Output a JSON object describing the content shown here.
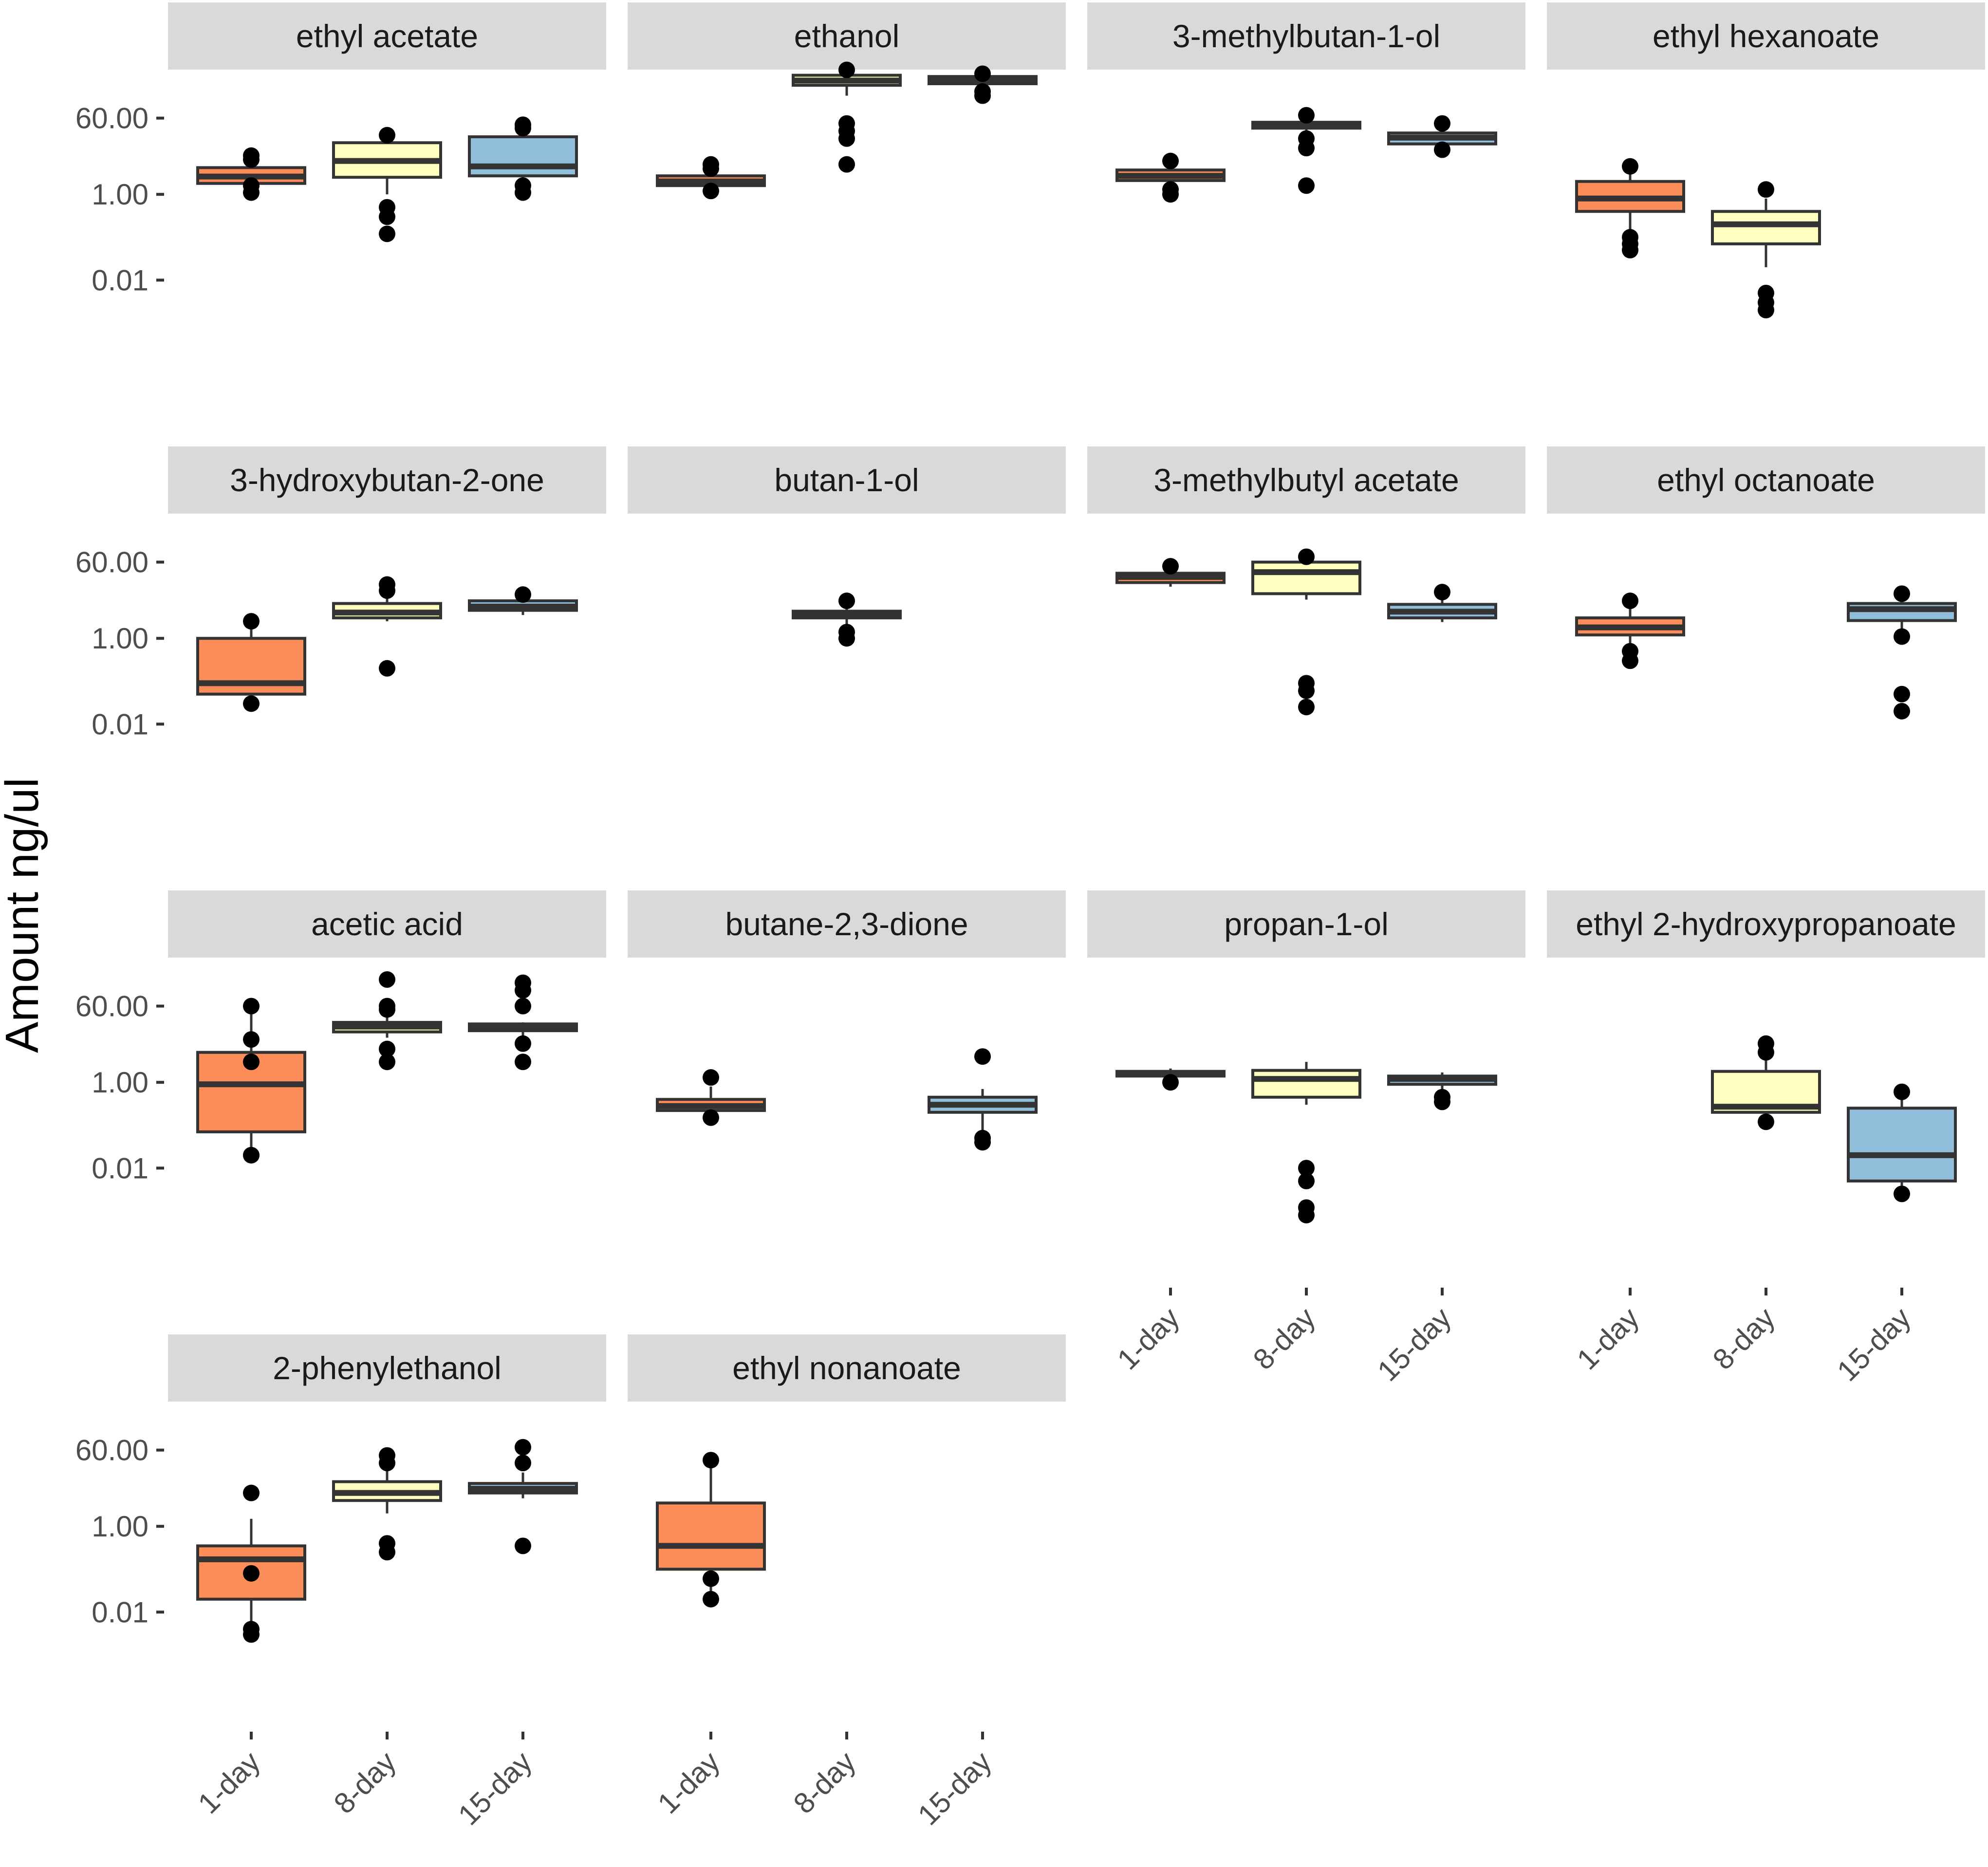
{
  "chart_data": {
    "type": "boxplot",
    "title": "",
    "xlabel": "",
    "ylabel": "Amount ng/ul",
    "y_scale": "log10",
    "y_ticks": [
      {
        "label": "60.00",
        "value": 60
      },
      {
        "label": "1.00",
        "value": 1
      },
      {
        "label": "0.01",
        "value": 0.01
      }
    ],
    "ylim": [
      0.0002,
      1000
    ],
    "categories": [
      "1-day",
      "8-day",
      "15-day"
    ],
    "colors": {
      "1-day": "#fc8d59",
      "8-day": "#ffffbf",
      "15-day": "#91bfdb"
    },
    "panels": [
      {
        "name": "ethyl acetate",
        "boxes": [
          {
            "group": "1-day",
            "q1": 1.8,
            "median": 2.6,
            "q3": 4.2,
            "whisker_low": 1.3,
            "whisker_high": 5.5,
            "outliers": [
              1.1,
              1.6,
              6.5,
              8.0
            ]
          },
          {
            "group": "8-day",
            "q1": 2.5,
            "median": 6.0,
            "q3": 16.0,
            "whisker_low": 1.0,
            "whisker_high": 19.0,
            "outliers": [
              0.5,
              0.3,
              0.12,
              24.0
            ]
          },
          {
            "group": "15-day",
            "q1": 2.7,
            "median": 4.5,
            "q3": 22.0,
            "whisker_low": 1.5,
            "whisker_high": 30.0,
            "outliers": [
              1.1,
              1.6,
              35.0,
              42.0
            ]
          }
        ]
      },
      {
        "name": "ethanol",
        "boxes": [
          {
            "group": "1-day",
            "q1": 1.6,
            "median": 2.0,
            "q3": 2.7,
            "whisker_low": 1.3,
            "whisker_high": 3.2,
            "outliers": [
              1.2,
              4.0,
              5.0
            ]
          },
          {
            "group": "8-day",
            "q1": 350.0,
            "median": 450.0,
            "q3": 600.0,
            "whisker_low": 200.0,
            "whisker_high": 700.0,
            "outliers": [
              45.0,
              30.0,
              20.0,
              5.0,
              800.0
            ]
          },
          {
            "group": "15-day",
            "q1": 380.0,
            "median": 450.0,
            "q3": 560.0,
            "whisker_low": 300.0,
            "whisker_high": 600.0,
            "outliers": [
              250.0,
              200.0,
              650.0
            ]
          }
        ]
      },
      {
        "name": "3-methylbutan-1-ol",
        "boxes": [
          {
            "group": "1-day",
            "q1": 2.1,
            "median": 2.7,
            "q3": 3.7,
            "whisker_low": 1.4,
            "whisker_high": 5.0,
            "outliers": [
              1.0,
              1.3,
              6.0
            ]
          },
          {
            "group": "8-day",
            "q1": 35.0,
            "median": 40.0,
            "q3": 48.0,
            "whisker_low": 30.0,
            "whisker_high": 60.0,
            "outliers": [
              12.0,
              20.0,
              1.6,
              70.0
            ]
          },
          {
            "group": "15-day",
            "q1": 15.0,
            "median": 21.0,
            "q3": 27.0,
            "whisker_low": 12.0,
            "whisker_high": 35.0,
            "outliers": [
              11.0,
              45.0
            ]
          }
        ]
      },
      {
        "name": "ethyl hexanoate",
        "boxes": [
          {
            "group": "1-day",
            "q1": 0.4,
            "median": 0.8,
            "q3": 2.0,
            "whisker_low": 0.15,
            "whisker_high": 3.5,
            "outliers": [
              0.1,
              0.07,
              0.05,
              4.5
            ]
          },
          {
            "group": "8-day",
            "q1": 0.07,
            "median": 0.2,
            "q3": 0.4,
            "whisker_low": 0.02,
            "whisker_high": 0.8,
            "outliers": [
              0.005,
              0.003,
              0.002,
              1.3
            ]
          },
          {
            "group": "15-day",
            "q1": null,
            "median": null,
            "q3": null,
            "whisker_low": null,
            "whisker_high": null,
            "outliers": []
          }
        ]
      },
      {
        "name": "3-hydroxybutan-2-one",
        "boxes": [
          {
            "group": "1-day",
            "q1": 0.05,
            "median": 0.09,
            "q3": 1.0,
            "whisker_low": 0.04,
            "whisker_high": 1.8,
            "outliers": [
              0.03,
              2.5
            ]
          },
          {
            "group": "8-day",
            "q1": 3.0,
            "median": 4.0,
            "q3": 6.5,
            "whisker_low": 2.5,
            "whisker_high": 10.0,
            "outliers": [
              0.2,
              13.0,
              18.0
            ]
          },
          {
            "group": "15-day",
            "q1": 4.5,
            "median": 5.5,
            "q3": 7.5,
            "whisker_low": 3.5,
            "whisker_high": 9.0,
            "outliers": [
              10.5
            ]
          }
        ]
      },
      {
        "name": "butan-1-ol",
        "boxes": [
          {
            "group": "1-day",
            "q1": null,
            "median": null,
            "q3": null,
            "whisker_low": null,
            "whisker_high": null,
            "outliers": []
          },
          {
            "group": "8-day",
            "q1": 3.0,
            "median": 3.6,
            "q3": 4.3,
            "whisker_low": 1.8,
            "whisker_high": 6.0,
            "outliers": [
              1.0,
              1.4,
              7.5
            ]
          },
          {
            "group": "15-day",
            "q1": null,
            "median": null,
            "q3": null,
            "whisker_low": null,
            "whisker_high": null,
            "outliers": []
          }
        ]
      },
      {
        "name": "3-methylbutyl acetate",
        "boxes": [
          {
            "group": "1-day",
            "q1": 20.0,
            "median": 27.0,
            "q3": 33.0,
            "whisker_low": 16.0,
            "whisker_high": 40.0,
            "outliers": [
              48.0
            ]
          },
          {
            "group": "8-day",
            "q1": 11.0,
            "median": 35.0,
            "q3": 60.0,
            "whisker_low": 8.0,
            "whisker_high": 70.0,
            "outliers": [
              0.09,
              0.06,
              0.025,
              80.0
            ]
          },
          {
            "group": "15-day",
            "q1": 3.0,
            "median": 4.2,
            "q3": 6.2,
            "whisker_low": 2.4,
            "whisker_high": 9.0,
            "outliers": [
              12.0
            ]
          }
        ]
      },
      {
        "name": "ethyl octanoate",
        "boxes": [
          {
            "group": "1-day",
            "q1": 1.2,
            "median": 1.8,
            "q3": 3.0,
            "whisker_low": 0.5,
            "whisker_high": 5.5,
            "outliers": [
              0.3,
              0.5,
              7.5
            ]
          },
          {
            "group": "15-day",
            "q1": 2.6,
            "median": 4.8,
            "q3": 6.5,
            "whisker_low": 1.5,
            "whisker_high": 9.0,
            "outliers": [
              1.1,
              0.05,
              0.02,
              11.0
            ]
          },
          {
            "group": "8-day",
            "q1": null,
            "median": null,
            "q3": null,
            "whisker_low": null,
            "whisker_high": null,
            "outliers": []
          }
        ]
      },
      {
        "name": "acetic acid",
        "boxes": [
          {
            "group": "1-day",
            "q1": 0.07,
            "median": 0.9,
            "q3": 5.0,
            "whisker_low": 0.03,
            "whisker_high": 60.0,
            "outliers": [
              0.02,
              0.02,
              3.0,
              10.0,
              60.0
            ]
          },
          {
            "group": "8-day",
            "q1": 15.0,
            "median": 20.0,
            "q3": 25.0,
            "whisker_low": 11.0,
            "whisker_high": 40.0,
            "outliers": [
              6.0,
              3.0,
              50.0,
              60.0,
              250.0
            ]
          },
          {
            "group": "15-day",
            "q1": 16.0,
            "median": 20.0,
            "q3": 23.0,
            "whisker_low": 12.0,
            "whisker_high": 25.0,
            "outliers": [
              8.0,
              3.0,
              60.0,
              140.0,
              210.0
            ]
          }
        ]
      },
      {
        "name": "butane-2,3-dione",
        "boxes": [
          {
            "group": "1-day",
            "q1": 0.22,
            "median": 0.28,
            "q3": 0.4,
            "whisker_low": 0.15,
            "whisker_high": 0.8,
            "outliers": [
              0.15,
              1.3
            ]
          },
          {
            "group": "8-day",
            "q1": null,
            "median": null,
            "q3": null,
            "whisker_low": null,
            "whisker_high": null,
            "outliers": []
          },
          {
            "group": "15-day",
            "q1": 0.2,
            "median": 0.3,
            "q3": 0.45,
            "whisker_low": 0.07,
            "whisker_high": 0.7,
            "outliers": [
              0.05,
              0.04,
              4.0
            ]
          }
        ]
      },
      {
        "name": "propan-1-ol",
        "boxes": [
          {
            "group": "1-day",
            "q1": 1.4,
            "median": 1.6,
            "q3": 1.8,
            "whisker_low": 1.1,
            "whisker_high": 2.1,
            "outliers": [
              1.0
            ]
          },
          {
            "group": "8-day",
            "q1": 0.45,
            "median": 1.2,
            "q3": 1.9,
            "whisker_low": 0.3,
            "whisker_high": 3.0,
            "outliers": [
              0.01,
              0.005,
              0.0012,
              0.0008
            ]
          },
          {
            "group": "15-day",
            "q1": 0.9,
            "median": 1.2,
            "q3": 1.4,
            "whisker_low": 0.6,
            "whisker_high": 1.7,
            "outliers": [
              0.45,
              0.35
            ]
          }
        ]
      },
      {
        "name": "ethyl 2-hydroxypropanoate",
        "boxes": [
          {
            "group": "1-day",
            "q1": null,
            "median": null,
            "q3": null,
            "whisker_low": null,
            "whisker_high": null,
            "outliers": []
          },
          {
            "group": "8-day",
            "q1": 0.2,
            "median": 0.27,
            "q3": 1.8,
            "whisker_low": 0.15,
            "whisker_high": 3.5,
            "outliers": [
              0.12,
              5.0,
              8.0
            ]
          },
          {
            "group": "15-day",
            "q1": 0.005,
            "median": 0.02,
            "q3": 0.25,
            "whisker_low": 0.003,
            "whisker_high": 0.45,
            "outliers": [
              0.0025,
              0.6
            ]
          }
        ]
      },
      {
        "name": "2-phenylethanol",
        "boxes": [
          {
            "group": "1-day",
            "q1": 0.02,
            "median": 0.17,
            "q3": 0.35,
            "whisker_low": 0.005,
            "whisker_high": 1.5,
            "outliers": [
              0.004,
              0.003,
              0.08,
              6.0
            ]
          },
          {
            "group": "8-day",
            "q1": 4.0,
            "median": 6.0,
            "q3": 11.0,
            "whisker_low": 2.0,
            "whisker_high": 20.0,
            "outliers": [
              0.25,
              0.4,
              30.0,
              45.0
            ]
          },
          {
            "group": "15-day",
            "q1": 6.0,
            "median": 7.5,
            "q3": 10.0,
            "whisker_low": 4.5,
            "whisker_high": 18.0,
            "outliers": [
              0.35,
              30.0,
              70.0
            ]
          }
        ]
      },
      {
        "name": "ethyl nonanoate",
        "boxes": [
          {
            "group": "1-day",
            "q1": 0.1,
            "median": 0.35,
            "q3": 3.5,
            "whisker_low": 0.03,
            "whisker_high": 35.0,
            "outliers": [
              0.02,
              0.06,
              35.0
            ]
          },
          {
            "group": "8-day",
            "q1": null,
            "median": null,
            "q3": null,
            "whisker_low": null,
            "whisker_high": null,
            "outliers": []
          },
          {
            "group": "15-day",
            "q1": null,
            "median": null,
            "q3": null,
            "whisker_low": null,
            "whisker_high": null,
            "outliers": []
          }
        ]
      }
    ]
  }
}
